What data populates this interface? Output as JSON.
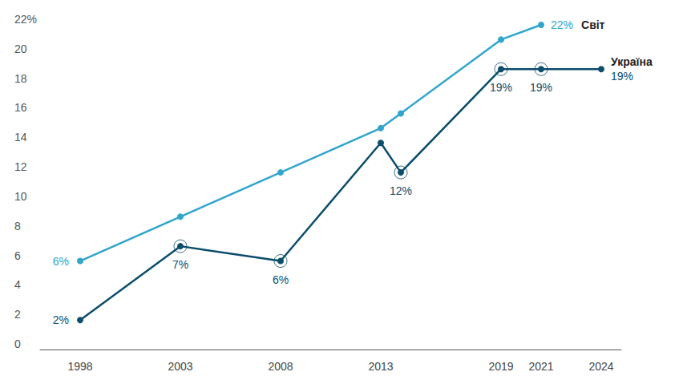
{
  "chart_data": {
    "type": "line",
    "x": [
      1998,
      2003,
      2008,
      2013,
      2014,
      2019,
      2021,
      2024
    ],
    "xlim": [
      1996,
      2025
    ],
    "xticks": [
      1998,
      2003,
      2008,
      2013,
      2019,
      2021,
      2024
    ],
    "ylim": [
      0,
      22
    ],
    "yticks": [
      0,
      2,
      4,
      6,
      8,
      10,
      12,
      14,
      16,
      18,
      20,
      {
        "value": 22,
        "label": "22%"
      }
    ],
    "grid": false,
    "data_labels": true,
    "marker": "circle",
    "series": [
      {
        "name": "Світ",
        "color": "#31a5cc",
        "values": [
          6,
          9,
          12,
          15,
          16,
          21,
          22,
          null
        ],
        "value_labels": [
          "6%",
          null,
          null,
          null,
          null,
          null,
          "22%",
          null
        ]
      },
      {
        "name": "Україна",
        "color": "#0b4d6b",
        "values": [
          2,
          7,
          6,
          14,
          12,
          19,
          19,
          19
        ],
        "value_labels": [
          "2%",
          "7%",
          "6%",
          null,
          "12%",
          "19%",
          "19%",
          "19%"
        ]
      }
    ]
  }
}
